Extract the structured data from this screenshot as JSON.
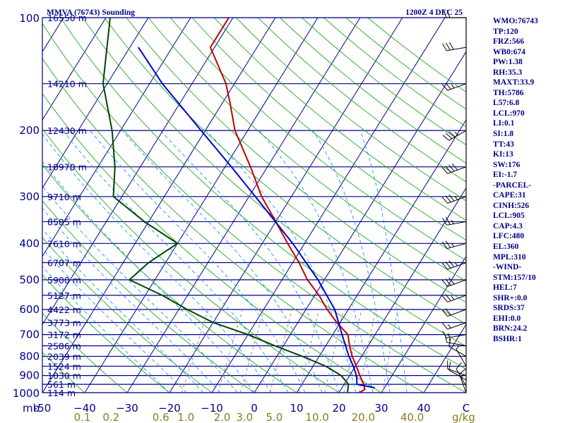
{
  "header": {
    "station": "MMVA (76743) Sounding",
    "time": "1200Z  4 DEC 25"
  },
  "colors": {
    "frame": "#00008b",
    "isotherm": "#00008b",
    "dry_adiabat": "#22aa22",
    "moist_adiabat": "#1e90ff",
    "mixing_ratio": "#8a8a8a",
    "temperature": "#c00000",
    "dewpoint": "#004400",
    "parcel": "#0000cc",
    "barb": "#000000"
  },
  "indices": [
    "WMO:76743",
    "TP:120",
    "FRZ:566",
    "WB0:674",
    "PW:1.38",
    "RH:35.3",
    "MAXT:33.9",
    "TH:5786",
    "L57:6.8",
    "LCL:970",
    "LI:0.1",
    "SI:1.8",
    "TT:43",
    "KI:13",
    "SW:176",
    "EI:-1.7",
    "-PARCEL-",
    "CAPE:31",
    "CINH:526",
    "LCL:905",
    "CAP:4.3",
    "LFC:480",
    "EL:360",
    "MPL:310",
    "-WIND-",
    "STM:157/10",
    "HEL:7",
    "SHR+:0.0",
    "SRDS:37",
    "EHI:0.0",
    "BRN:24.2",
    "BSHR:1"
  ],
  "chart_data": {
    "type": "skew-t log-p sounding",
    "title": "MMVA (76743) Sounding",
    "valid_time": "1200Z  4 DEC 25",
    "pressure_unit": "mb",
    "mixing_ratio_unit": "g/kg",
    "pressure_range": [
      1000,
      100
    ],
    "temperature_range": [
      -50,
      50
    ],
    "skew_deg_per_decade": 55,
    "pressure_ticks": [
      100,
      200,
      300,
      400,
      500,
      600,
      700,
      800,
      900,
      1000
    ],
    "pressure_tick_labels": [
      "100",
      "200",
      "300",
      "400",
      "500",
      "600",
      "700",
      "800",
      "900",
      "1000"
    ],
    "temperature_ticks": [
      -50,
      -40,
      -30,
      -20,
      -10,
      0,
      10,
      20,
      30,
      40,
      50
    ],
    "temperature_tick_labels": [
      "-50",
      "−40",
      "−30",
      "−20",
      "−10",
      "0",
      "10",
      "20",
      "30",
      "40",
      "C"
    ],
    "mixing_ratio_ticks": [
      0.1,
      0.2,
      0.6,
      1.0,
      2.0,
      3.0,
      5.0,
      10.0,
      20.0,
      40.0
    ],
    "mixing_ratio_tick_labels": [
      "0.1",
      "0.2",
      "0.6",
      "1.0",
      "2.0",
      "3.0",
      "5.0",
      "10.0",
      "20.0",
      "40.0"
    ],
    "mixing_ratio_lines": [
      1,
      2,
      3,
      5,
      8,
      12,
      16,
      20,
      28
    ],
    "height_levels": [
      {
        "p": 100,
        "label": "16550 m"
      },
      {
        "p": 150,
        "label": "14210 m"
      },
      {
        "p": 200,
        "label": "12430 m"
      },
      {
        "p": 250,
        "label": "10970 m"
      },
      {
        "p": 300,
        "label": "9710 m"
      },
      {
        "p": 350,
        "label": "8585 m"
      },
      {
        "p": 400,
        "label": "7610 m"
      },
      {
        "p": 450,
        "label": "6707 m"
      },
      {
        "p": 500,
        "label": "5900 m"
      },
      {
        "p": 550,
        "label": "5127 m"
      },
      {
        "p": 600,
        "label": "4422 m"
      },
      {
        "p": 650,
        "label": "3773 m"
      },
      {
        "p": 700,
        "label": "3172 m"
      },
      {
        "p": 750,
        "label": "2586 m"
      },
      {
        "p": 800,
        "label": "2039 m"
      },
      {
        "p": 850,
        "label": "1524 m"
      },
      {
        "p": 900,
        "label": "1030 m"
      },
      {
        "p": 950,
        "label": "561 m"
      },
      {
        "p": 1000,
        "label": "114 m"
      }
    ],
    "series": [
      {
        "name": "Temperature",
        "points": [
          [
            1000,
            24.8
          ],
          [
            980,
            25.6
          ],
          [
            950,
            24.6
          ],
          [
            900,
            22.4
          ],
          [
            850,
            20.2
          ],
          [
            800,
            17.8
          ],
          [
            750,
            15.6
          ],
          [
            700,
            13.6
          ],
          [
            650,
            9.2
          ],
          [
            600,
            5.0
          ],
          [
            550,
            1.0
          ],
          [
            500,
            -4.0
          ],
          [
            450,
            -8.5
          ],
          [
            400,
            -14.0
          ],
          [
            350,
            -20.0
          ],
          [
            300,
            -27.0
          ],
          [
            250,
            -34.0
          ],
          [
            200,
            -43.0
          ],
          [
            170,
            -48.0
          ],
          [
            150,
            -52.0
          ],
          [
            120,
            -61.0
          ],
          [
            100,
            -61.0
          ]
        ]
      },
      {
        "name": "Dewpoint",
        "points": [
          [
            1000,
            22.0
          ],
          [
            950,
            21.0
          ],
          [
            900,
            18.0
          ],
          [
            850,
            13.0
          ],
          [
            800,
            6.0
          ],
          [
            750,
            -2.0
          ],
          [
            700,
            -10.0
          ],
          [
            650,
            -20.0
          ],
          [
            600,
            -28.0
          ],
          [
            550,
            -36.0
          ],
          [
            500,
            -46.0
          ],
          [
            450,
            -44.0
          ],
          [
            400,
            -40.0
          ],
          [
            350,
            -51.0
          ],
          [
            300,
            -62.0
          ],
          [
            250,
            -66.0
          ],
          [
            200,
            -72.0
          ],
          [
            150,
            -81.0
          ],
          [
            100,
            -89.0
          ]
        ]
      },
      {
        "name": "Parcel",
        "points": [
          [
            970,
            27.7
          ],
          [
            950,
            23.0
          ],
          [
            905,
            21.8
          ],
          [
            850,
            19.5
          ],
          [
            800,
            17.0
          ],
          [
            700,
            12.2
          ],
          [
            600,
            6.8
          ],
          [
            500,
            -1.5
          ],
          [
            400,
            -12.8
          ],
          [
            300,
            -28.5
          ],
          [
            250,
            -38.5
          ],
          [
            200,
            -51.0
          ],
          [
            150,
            -67.0
          ],
          [
            120,
            -78.0
          ]
        ]
      }
    ],
    "wind_barbs": [
      {
        "p": 1000,
        "dir": 340,
        "spd": 15
      },
      {
        "p": 960,
        "dir": 330,
        "spd": 10
      },
      {
        "p": 925,
        "dir": 300,
        "spd": 10
      },
      {
        "p": 900,
        "dir": 290,
        "spd": 10
      },
      {
        "p": 850,
        "dir": 330,
        "spd": 5
      },
      {
        "p": 800,
        "dir": 300,
        "spd": 10
      },
      {
        "p": 750,
        "dir": 280,
        "spd": 15
      },
      {
        "p": 700,
        "dir": 260,
        "spd": 15
      },
      {
        "p": 650,
        "dir": 250,
        "spd": 15
      },
      {
        "p": 600,
        "dir": 250,
        "spd": 20
      },
      {
        "p": 550,
        "dir": 250,
        "spd": 25
      },
      {
        "p": 500,
        "dir": 250,
        "spd": 30
      },
      {
        "p": 450,
        "dir": 250,
        "spd": 35
      },
      {
        "p": 400,
        "dir": 255,
        "spd": 25
      },
      {
        "p": 350,
        "dir": 260,
        "spd": 25
      },
      {
        "p": 300,
        "dir": 250,
        "spd": 35
      },
      {
        "p": 250,
        "dir": 250,
        "spd": 40
      },
      {
        "p": 200,
        "dir": 240,
        "spd": 35
      },
      {
        "p": 150,
        "dir": 250,
        "spd": 25
      },
      {
        "p": 120,
        "dir": 260,
        "spd": 30
      },
      {
        "p": 100,
        "dir": 270,
        "spd": 20
      }
    ]
  }
}
